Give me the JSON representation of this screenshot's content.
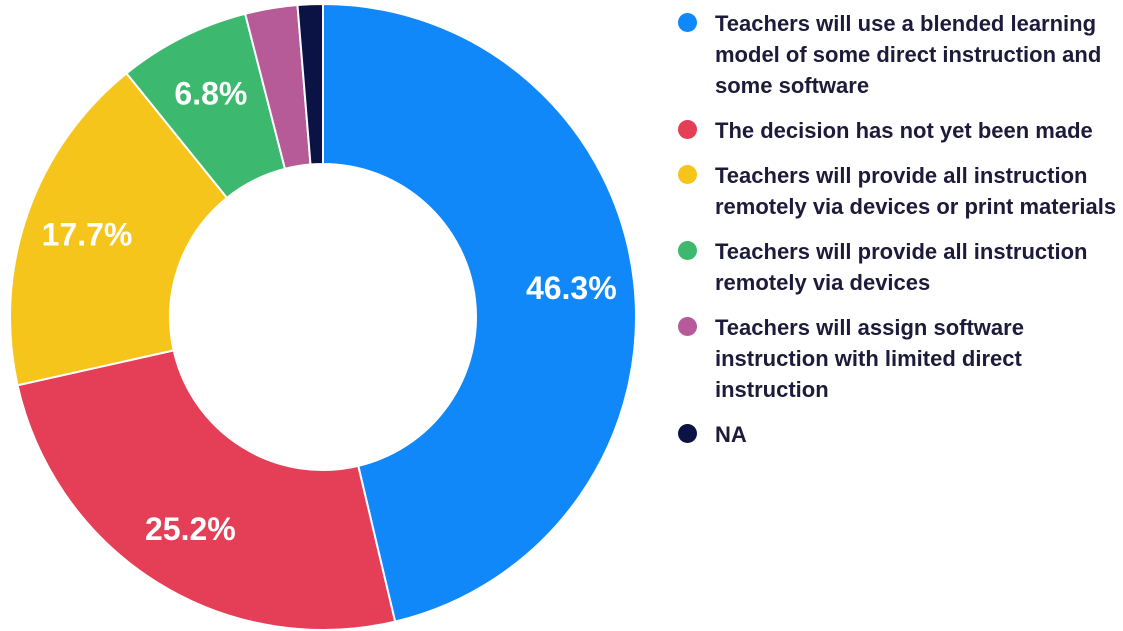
{
  "chart_data": {
    "type": "pie",
    "donut": true,
    "start_angle_deg": 0,
    "direction": "clockwise",
    "legend_position": "right",
    "slices": [
      {
        "label": "Teachers will use a blended learning model of some direct instruction and some software",
        "value": 46.3,
        "display": "46.3%",
        "color": "#1188f9",
        "show_label": true
      },
      {
        "label": "The decision has not yet been made",
        "value": 25.2,
        "display": "25.2%",
        "color": "#e43f56",
        "show_label": true
      },
      {
        "label": "Teachers will provide all instruction remotely via devices or print materials",
        "value": 17.7,
        "display": "17.7%",
        "color": "#f6c51b",
        "show_label": true
      },
      {
        "label": "Teachers will provide all instruction remotely via devices",
        "value": 6.8,
        "display": "6.8%",
        "color": "#3cb96f",
        "show_label": true
      },
      {
        "label": "Teachers will assign software instruction with limited direct instruction",
        "value": 2.7,
        "display": "",
        "color": "#b75a98",
        "show_label": false
      },
      {
        "label": "NA",
        "value": 1.3,
        "display": "",
        "color": "#0b1345",
        "show_label": false
      }
    ]
  }
}
